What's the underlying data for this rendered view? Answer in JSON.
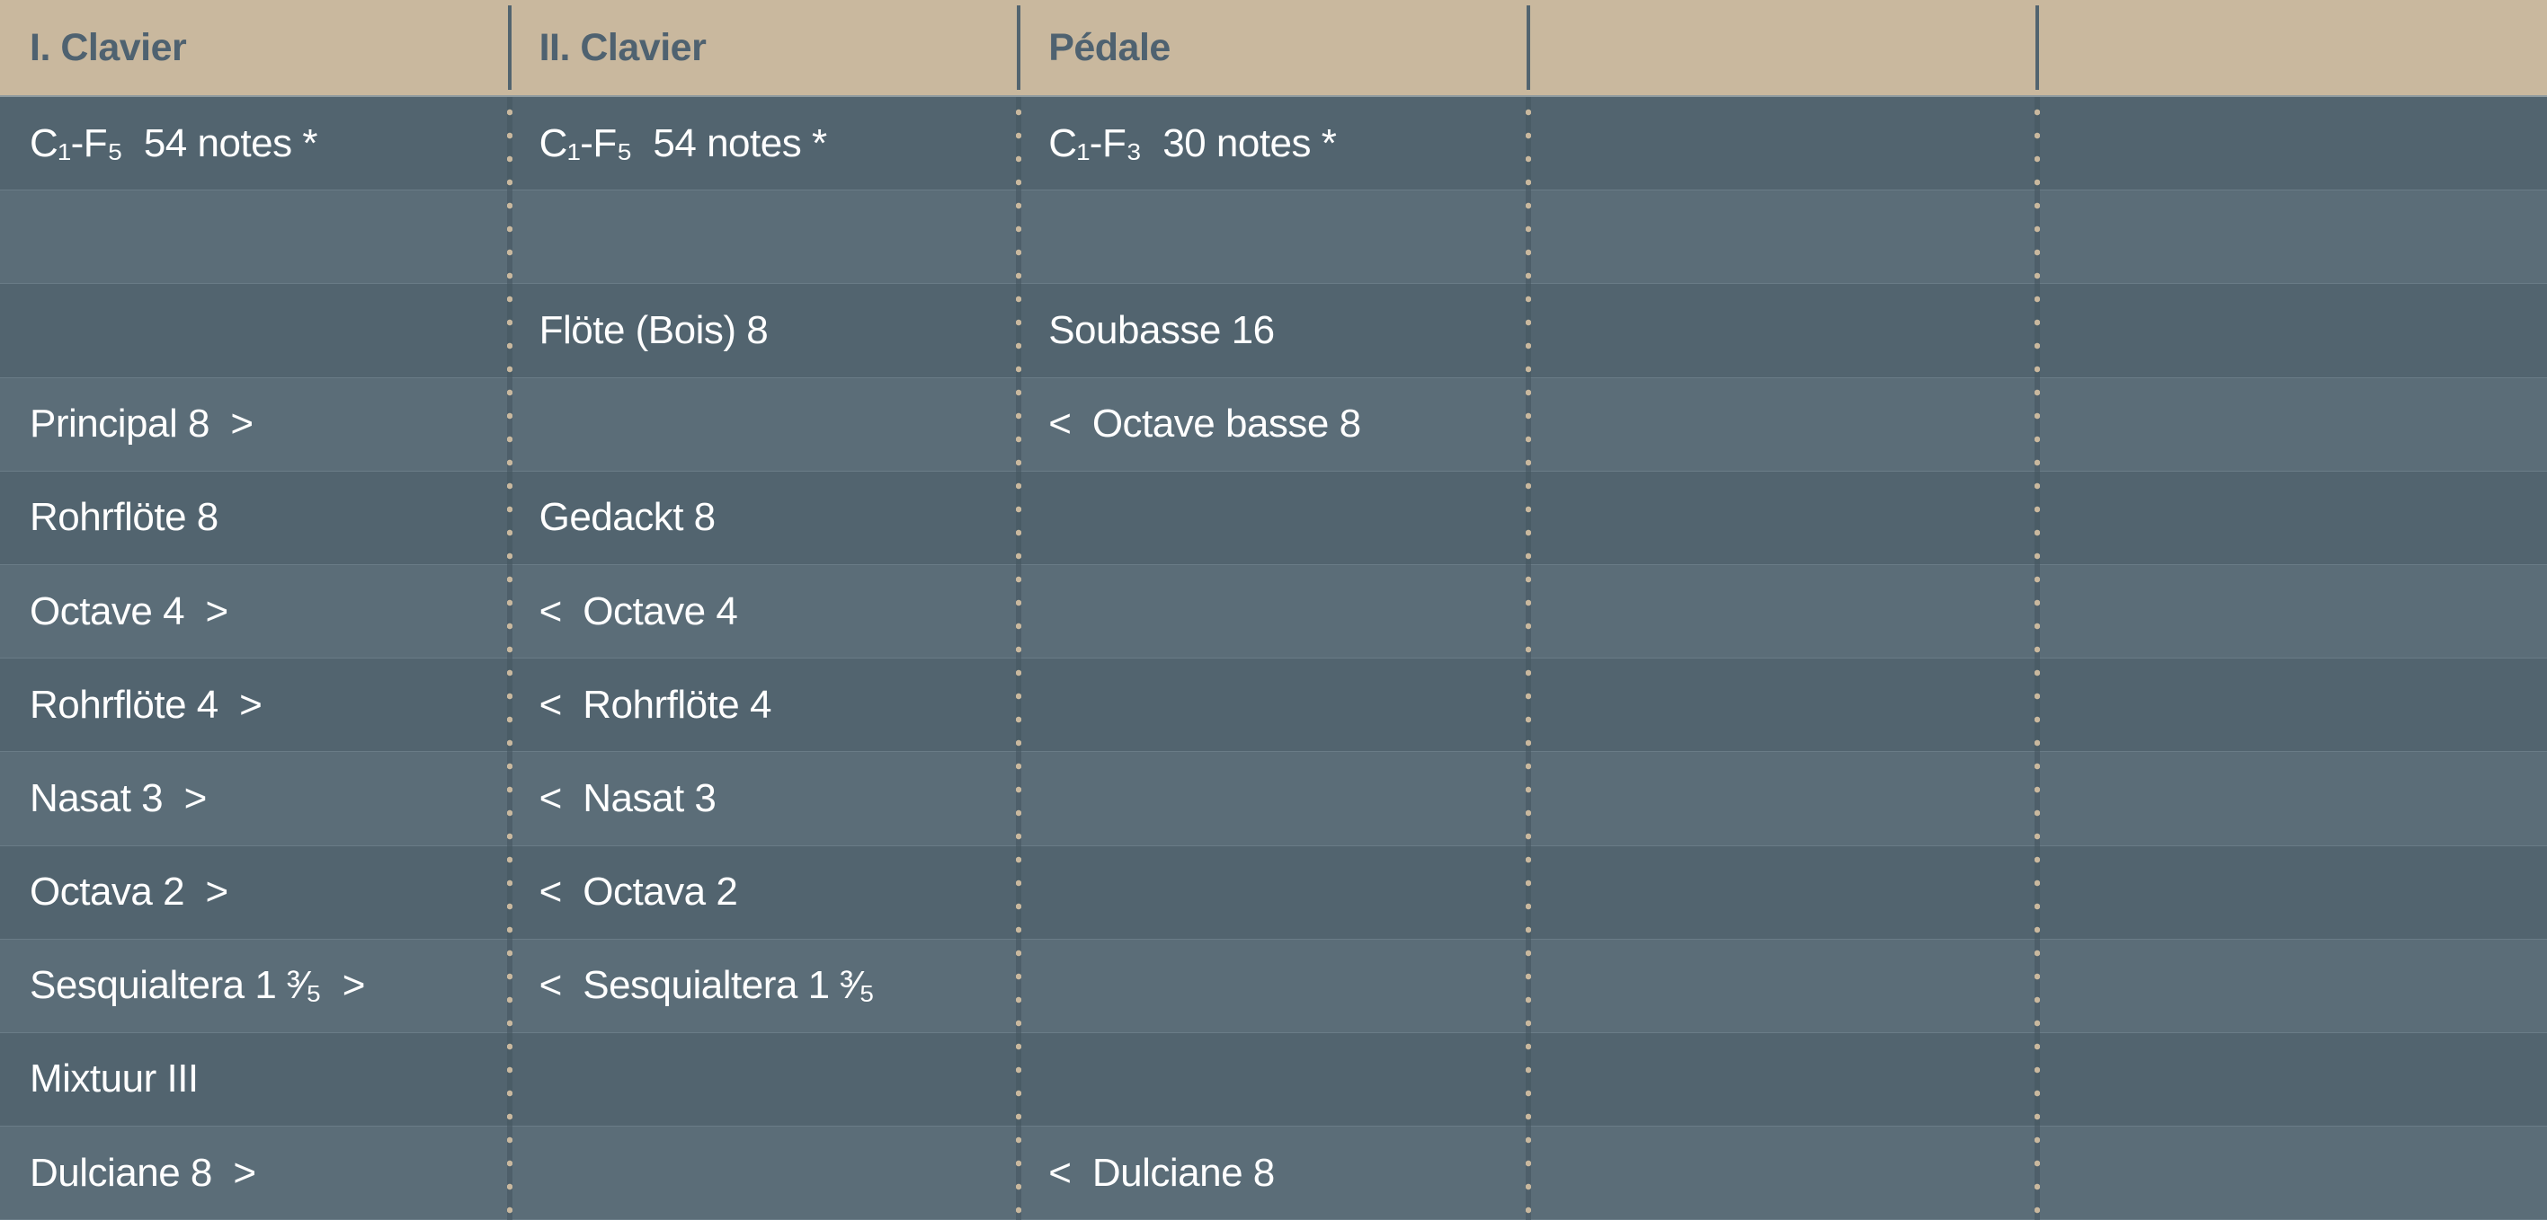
{
  "colors": {
    "header_bg": "#c9b89e",
    "header_text": "#4f6270",
    "row_dark": "#52646f",
    "row_light": "#5b6d78",
    "separator_dots": "#c9b89e"
  },
  "headers": [
    "I. Clavier",
    "II. Clavier",
    "Pédale",
    "",
    ""
  ],
  "rows": [
    [
      "C₁-F₅  54 notes *",
      "C₁-F₅  54 notes *",
      "C₁-F₃  30 notes *",
      "",
      ""
    ],
    [
      "",
      "",
      "",
      "",
      ""
    ],
    [
      "",
      "Flöte (Bois) 8",
      "Soubasse 16",
      "",
      ""
    ],
    [
      "Principal 8  >",
      "",
      "<  Octave basse 8",
      "",
      ""
    ],
    [
      "Rohrflöte 8",
      "Gedackt 8",
      "",
      "",
      ""
    ],
    [
      "Octave 4  >",
      "<  Octave 4",
      "",
      "",
      ""
    ],
    [
      "Rohrflöte 4  >",
      "<  Rohrflöte 4",
      "",
      "",
      ""
    ],
    [
      "Nasat 3  >",
      "<  Nasat 3",
      "",
      "",
      ""
    ],
    [
      "Octava 2  >",
      "<  Octava 2",
      "",
      "",
      ""
    ],
    [
      "Sesquialtera 1 ³⁄₅  >",
      "<  Sesquialtera 1 ³⁄₅",
      "",
      "",
      ""
    ],
    [
      "Mixtuur III",
      "",
      "",
      "",
      ""
    ],
    [
      "Dulciane 8  >",
      "",
      "<  Dulciane 8",
      "",
      ""
    ]
  ]
}
